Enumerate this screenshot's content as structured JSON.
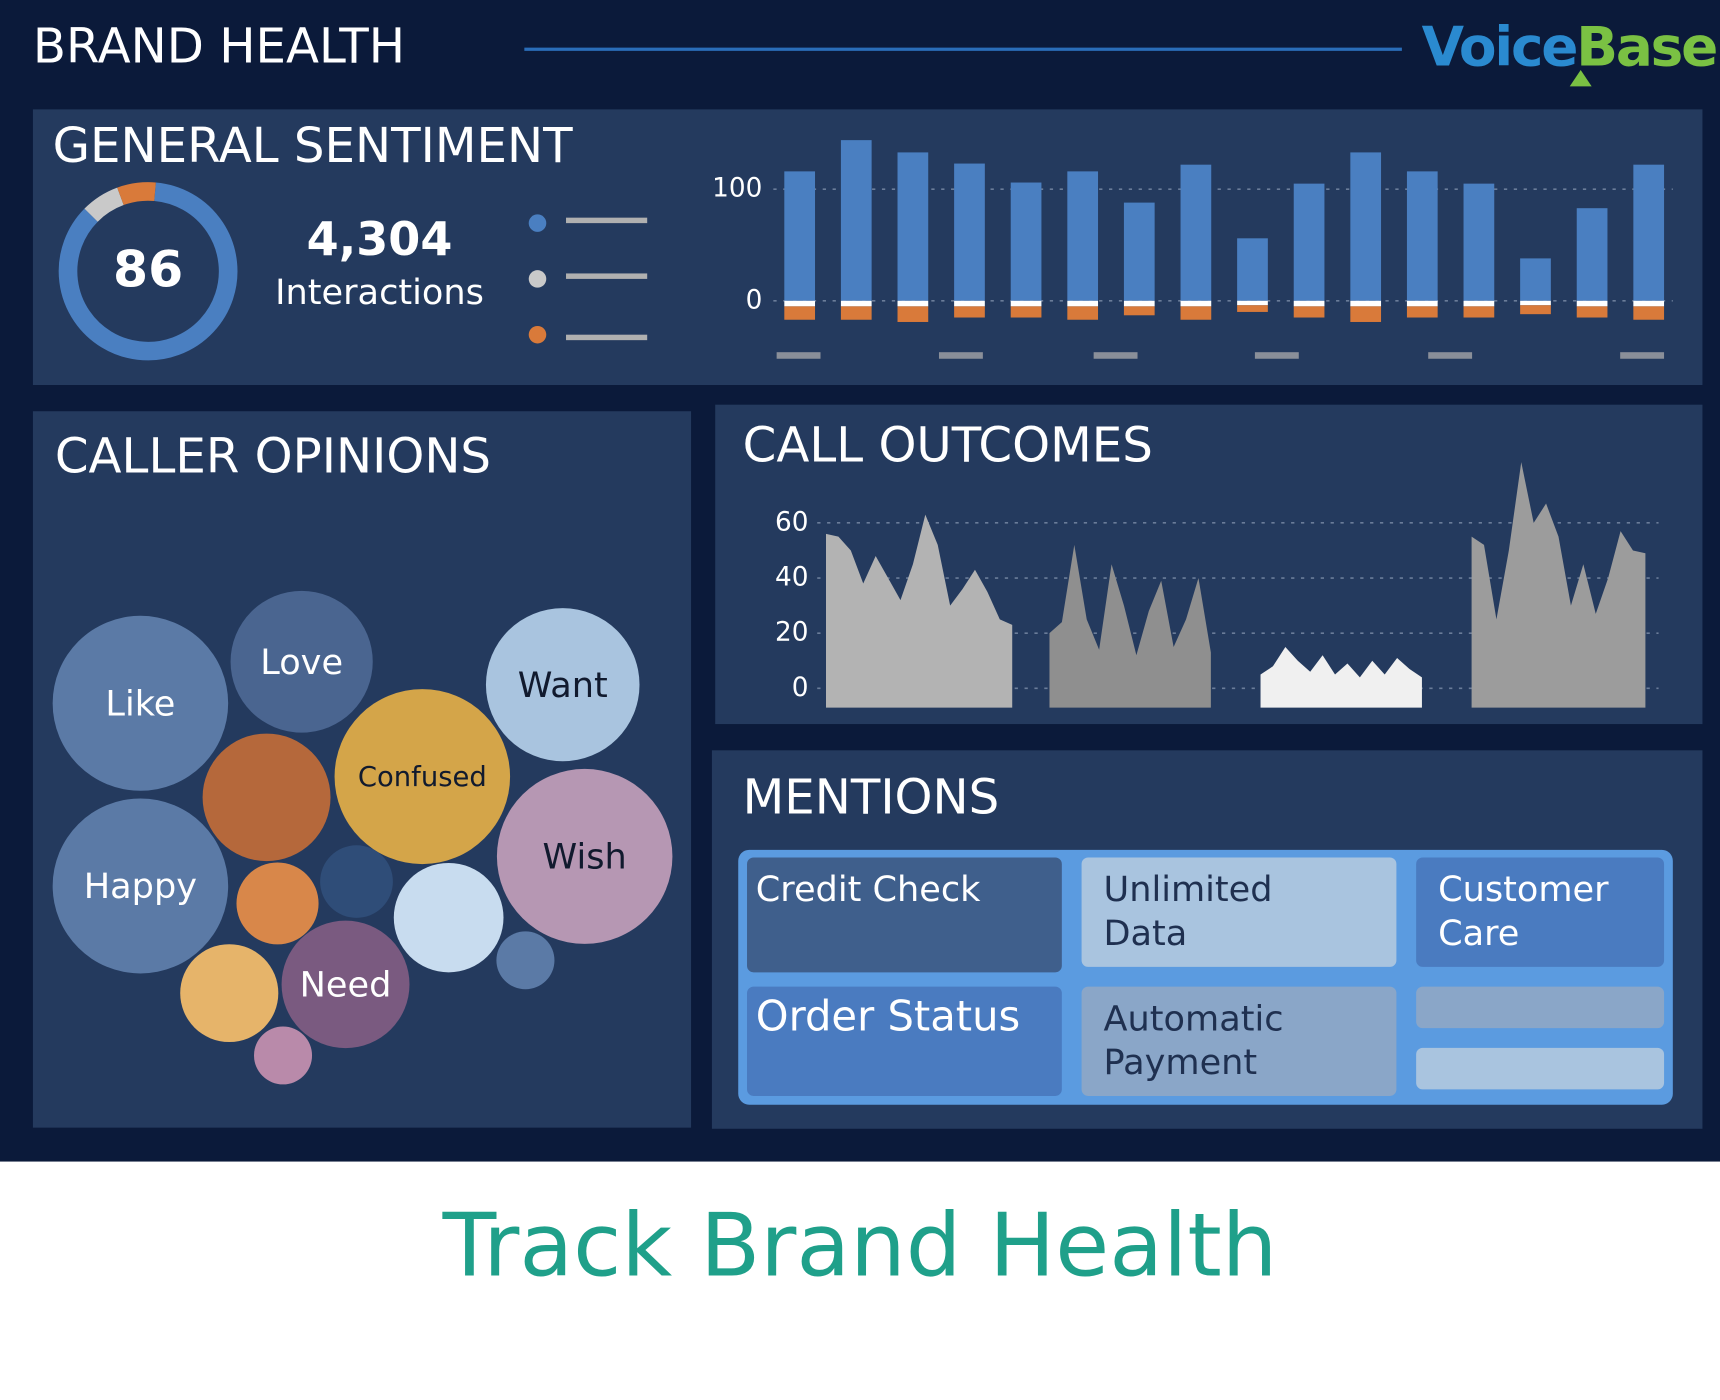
{
  "header": {
    "title": "BRAND HEALTH",
    "logo_voice": "Voice",
    "logo_base": "Base"
  },
  "general_sentiment": {
    "title": "GENERAL SENTIMENT",
    "score": "86",
    "interactions_count": "4,304",
    "interactions_label": "Interactions",
    "donut": {
      "type": "pie",
      "values": [
        86,
        7,
        7
      ],
      "colors": [
        "#4a7fc1",
        "#c9c9c9",
        "#d97a3a"
      ]
    },
    "bars": {
      "type": "bar",
      "ylim": [
        -35,
        150
      ],
      "yticks": [
        0,
        100
      ],
      "grid": true,
      "series": [
        {
          "color": "#4a7fc1",
          "values": [
            116,
            144,
            133,
            123,
            106,
            116,
            88,
            122,
            56,
            105,
            133,
            116,
            105,
            38,
            83,
            122
          ]
        },
        {
          "color": "#ffffff",
          "values": [
            -5,
            -5,
            -5,
            -5,
            -5,
            -5,
            -5,
            -5,
            -4,
            -5,
            -5,
            -5,
            -5,
            -4,
            -5,
            -5
          ]
        },
        {
          "color": "#d97a3a",
          "values": [
            -12,
            -12,
            -14,
            -10,
            -10,
            -12,
            -8,
            -12,
            -6,
            -10,
            -14,
            -10,
            -10,
            -8,
            -10,
            -12
          ]
        }
      ]
    }
  },
  "caller_opinions": {
    "title": "CALLER OPINIONS",
    "type": "bubble",
    "labels": [
      "Like",
      "Love",
      "Want",
      "Confused",
      "Wish",
      "Happy",
      null,
      null,
      null,
      null,
      "Need",
      null,
      null,
      null
    ],
    "values": [
      64,
      42,
      49,
      64,
      64,
      64,
      34,
      11,
      14,
      25,
      34,
      20,
      7,
      7
    ],
    "colors": [
      "#5b7aa6",
      "#4a6590",
      "#a9c4df",
      "#d4a549",
      "#b697b3",
      "#5b7aa6",
      "#b5683b",
      "#2f4d78",
      "#d8874a",
      "#c8dcef",
      "#7a5a80",
      "#e6b46a",
      "#5b7aa6",
      "#b98aaa"
    ]
  },
  "call_outcomes": {
    "title": "CALL OUTCOMES",
    "type": "area",
    "ylim": [
      -7,
      85
    ],
    "yticks": [
      0,
      20,
      40,
      60
    ],
    "grid": true,
    "values": [
      56,
      55,
      50,
      38,
      48,
      40,
      32,
      45,
      63,
      52,
      30,
      36,
      43,
      35,
      25,
      23,
      null,
      null,
      20,
      24,
      52,
      25,
      14,
      45,
      30,
      12,
      28,
      39,
      15,
      25,
      40,
      13,
      null,
      null,
      null,
      5,
      8,
      15,
      10,
      6,
      12,
      5,
      9,
      4,
      10,
      5,
      11,
      7,
      4,
      null,
      null,
      null,
      55,
      52,
      25,
      50,
      82,
      60,
      67,
      55,
      30,
      45,
      27,
      40,
      57,
      50,
      49
    ],
    "colors": [
      "#b3b3b3",
      "#8f8f8f",
      "#f0f0f0",
      "#9c9c9c"
    ]
  },
  "mentions": {
    "title": "MENTIONS",
    "tiles": [
      {
        "lines": [
          "Credit Check"
        ],
        "color": "#3f5f8c",
        "text_color": "#ffffff"
      },
      {
        "lines": [
          "Unlimited",
          "Data"
        ],
        "color": "#a9c4df",
        "text_color": "#1f3050"
      },
      {
        "lines": [
          "Customer",
          "Care"
        ],
        "color": "#4a7bc0",
        "text_color": "#ffffff"
      },
      {
        "lines": [
          "Order Status"
        ],
        "color": "#4a7bc0",
        "text_color": "#ffffff"
      },
      {
        "lines": [
          "Automatic",
          "Payment"
        ],
        "color": "#8aa6c8",
        "text_color": "#1f3050"
      }
    ]
  },
  "caption": "Track Brand Health"
}
